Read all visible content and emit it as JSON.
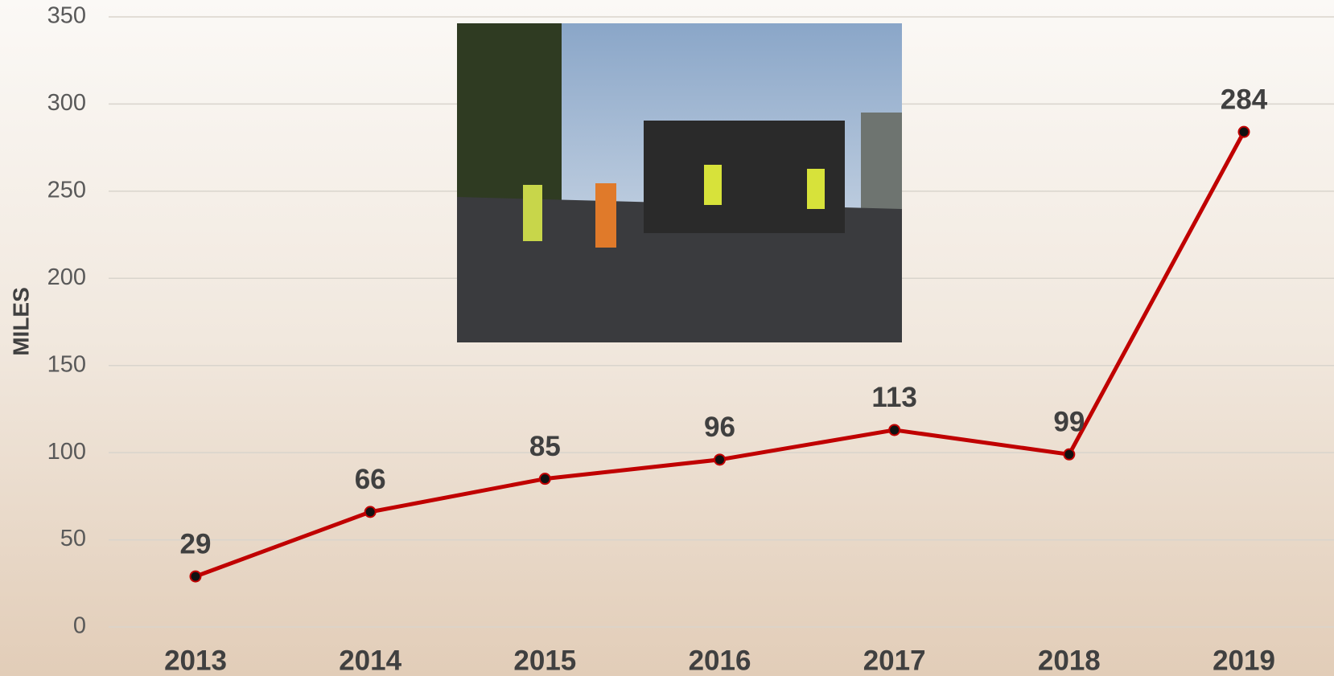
{
  "chart_data": {
    "type": "line",
    "y_label": "MILES",
    "categories": [
      "2013",
      "2014",
      "2015",
      "2016",
      "2017",
      "2018",
      "2019"
    ],
    "values": [
      29,
      66,
      85,
      96,
      113,
      99,
      284
    ],
    "color": "#c00000",
    "ylim": [
      0,
      350
    ],
    "yticks": [
      0,
      50,
      100,
      150,
      200,
      250,
      300,
      350
    ],
    "grid": true
  }
}
